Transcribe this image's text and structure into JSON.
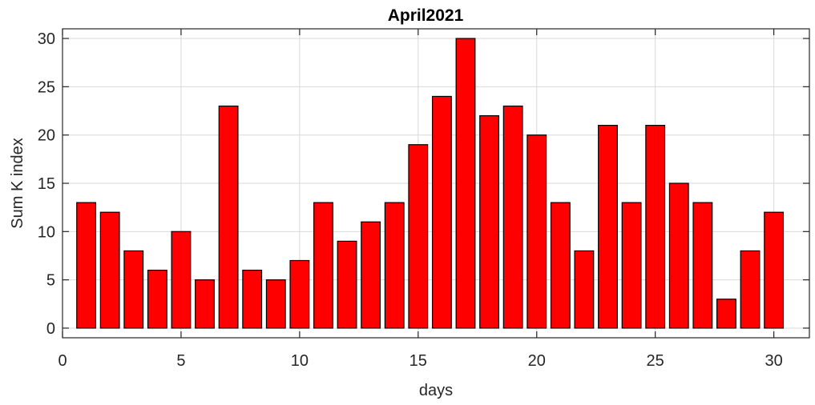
{
  "chart_data": {
    "type": "bar",
    "title": "April2021",
    "xlabel": "days",
    "ylabel": "Sum K index",
    "x": [
      1,
      2,
      3,
      4,
      5,
      6,
      7,
      8,
      9,
      10,
      11,
      12,
      13,
      14,
      15,
      16,
      17,
      18,
      19,
      20,
      21,
      22,
      23,
      24,
      25,
      26,
      27,
      28,
      29,
      30
    ],
    "values": [
      13,
      12,
      8,
      6,
      10,
      5,
      23,
      6,
      5,
      7,
      13,
      9,
      11,
      13,
      19,
      24,
      30,
      22,
      23,
      20,
      13,
      8,
      21,
      13,
      21,
      15,
      13,
      3,
      8,
      12
    ],
    "xlim": [
      0,
      31.5
    ],
    "ylim": [
      -1,
      31
    ],
    "xticks": [
      0,
      5,
      10,
      15,
      20,
      25,
      30
    ],
    "yticks": [
      0,
      5,
      10,
      15,
      20,
      25,
      30
    ],
    "grid": true,
    "bar_color": "#ff0000",
    "edge_color": "#000000"
  }
}
